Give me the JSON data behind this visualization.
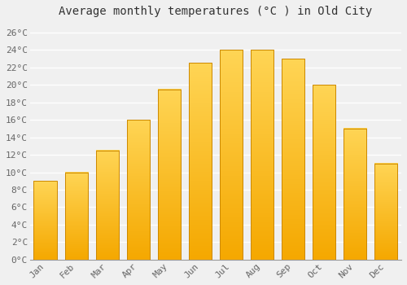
{
  "title": "Average monthly temperatures (°C ) in Old City",
  "months": [
    "Jan",
    "Feb",
    "Mar",
    "Apr",
    "May",
    "Jun",
    "Jul",
    "Aug",
    "Sep",
    "Oct",
    "Nov",
    "Dec"
  ],
  "values": [
    9,
    10,
    12.5,
    16,
    19.5,
    22.5,
    24,
    24,
    23,
    20,
    15,
    11
  ],
  "bar_color_bottom": "#F5A800",
  "bar_color_top": "#FFD555",
  "bar_edge_color": "#CC8800",
  "background_color": "#F0F0F0",
  "grid_color": "#FFFFFF",
  "ylim": [
    0,
    27
  ],
  "ytick_step": 2,
  "title_fontsize": 10,
  "tick_fontsize": 8,
  "font_family": "monospace",
  "bar_width": 0.75
}
